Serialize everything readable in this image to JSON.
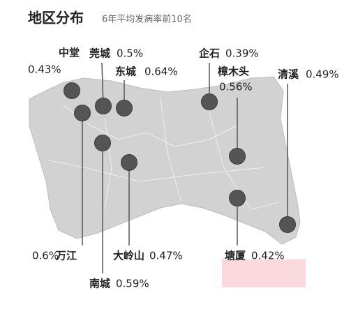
{
  "header": {
    "title": "地区分布",
    "subtitle": "6年平均发病率前10名"
  },
  "regions": [
    {
      "name": "中堂",
      "rate": "0.43%"
    },
    {
      "name": "莞城",
      "rate": "0.5%"
    },
    {
      "name": "东城",
      "rate": "0.64%"
    },
    {
      "name": "万江",
      "rate": "0.6%"
    },
    {
      "name": "南城",
      "rate": "0.59%"
    },
    {
      "name": "大岭山",
      "rate": "0.47%"
    },
    {
      "name": "企石",
      "rate": "0.39%"
    },
    {
      "name": "樟木头",
      "rate": "0.56%"
    },
    {
      "name": "塘厦",
      "rate": "0.42%"
    },
    {
      "name": "清溪",
      "rate": "0.49%"
    }
  ]
}
